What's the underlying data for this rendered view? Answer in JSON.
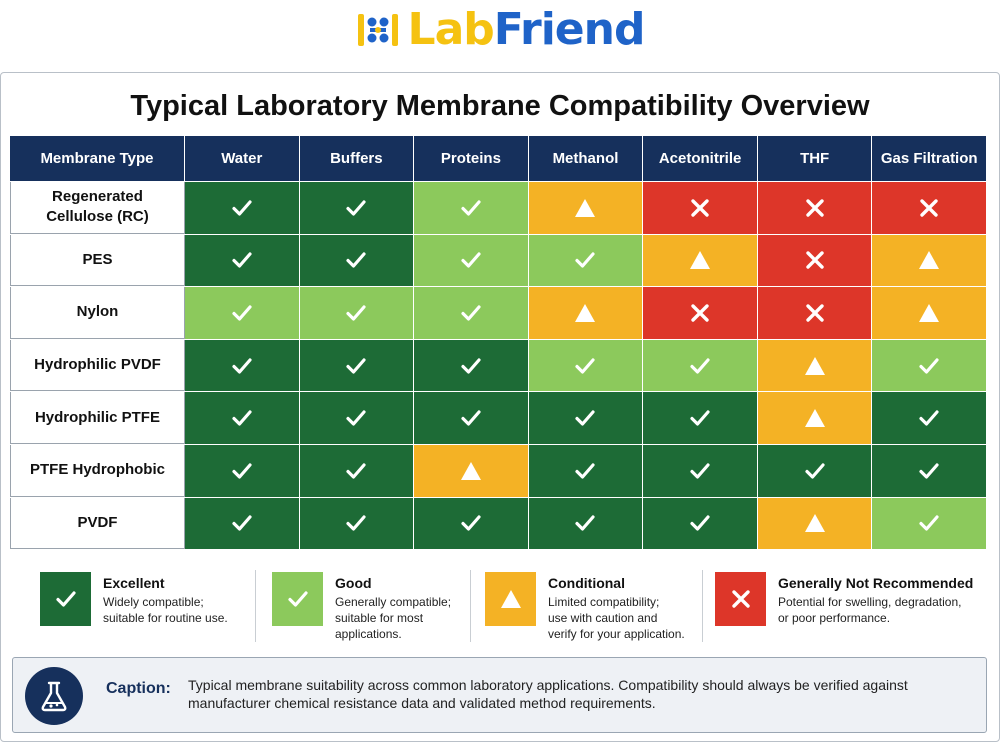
{
  "brand": {
    "logo_text_part1": "Lab",
    "logo_text_part2": "Friend",
    "color_primary": "#f5c211",
    "color_secondary": "#1f63c8"
  },
  "title": "Typical Laboratory Membrane Compatibility Overview",
  "table": {
    "headers": [
      "Membrane Type",
      "Water",
      "Buffers",
      "Proteins",
      "Methanol",
      "Acetonitrile",
      "THF",
      "Gas Filtration"
    ],
    "rows": [
      {
        "label": "Regenerated Cellulose (RC)",
        "cells": [
          "excellent",
          "excellent",
          "good",
          "conditional",
          "not",
          "not",
          "not"
        ]
      },
      {
        "label": "PES",
        "cells": [
          "excellent",
          "excellent",
          "good",
          "good",
          "conditional",
          "not",
          "conditional"
        ]
      },
      {
        "label": "Nylon",
        "cells": [
          "good",
          "good",
          "good",
          "conditional",
          "not",
          "not",
          "conditional"
        ]
      },
      {
        "label": "Hydrophilic PVDF",
        "cells": [
          "excellent",
          "excellent",
          "excellent",
          "good",
          "good",
          "conditional",
          "good"
        ]
      },
      {
        "label": "Hydrophilic PTFE",
        "cells": [
          "excellent",
          "excellent",
          "excellent",
          "excellent",
          "excellent",
          "conditional",
          "excellent"
        ]
      },
      {
        "label": "PTFE Hydrophobic",
        "cells": [
          "excellent",
          "excellent",
          "conditional",
          "excellent",
          "excellent",
          "excellent",
          "excellent"
        ]
      },
      {
        "label": "PVDF",
        "cells": [
          "excellent",
          "excellent",
          "excellent",
          "excellent",
          "excellent",
          "conditional",
          "good"
        ]
      }
    ]
  },
  "status_colors": {
    "excellent": "#1d6b36",
    "good": "#8cc95c",
    "conditional": "#f4b225",
    "not": "#dd3629",
    "header": "#16305c"
  },
  "legend": [
    {
      "key": "excellent",
      "icon": "check-icon",
      "title": "Excellent",
      "desc": [
        "Widely compatible;",
        "suitable for routine use."
      ]
    },
    {
      "key": "good",
      "icon": "check-icon",
      "title": "Good",
      "desc": [
        "Generally compatible;",
        "suitable for most",
        "applications."
      ]
    },
    {
      "key": "conditional",
      "icon": "warning-triangle-icon",
      "title": "Conditional",
      "desc": [
        "Limited compatibility;",
        "use with caution and",
        "verify for your application."
      ]
    },
    {
      "key": "not",
      "icon": "x-icon",
      "title": "Generally Not Recommended",
      "desc": [
        "Potential for swelling, degradation,",
        "or poor performance."
      ]
    }
  ],
  "caption": {
    "icon": "flask-icon",
    "label": "Caption:",
    "text": "Typical membrane suitability across common laboratory applications. Compatibility should always be verified against manufacturer chemical resistance data and validated method requirements."
  }
}
